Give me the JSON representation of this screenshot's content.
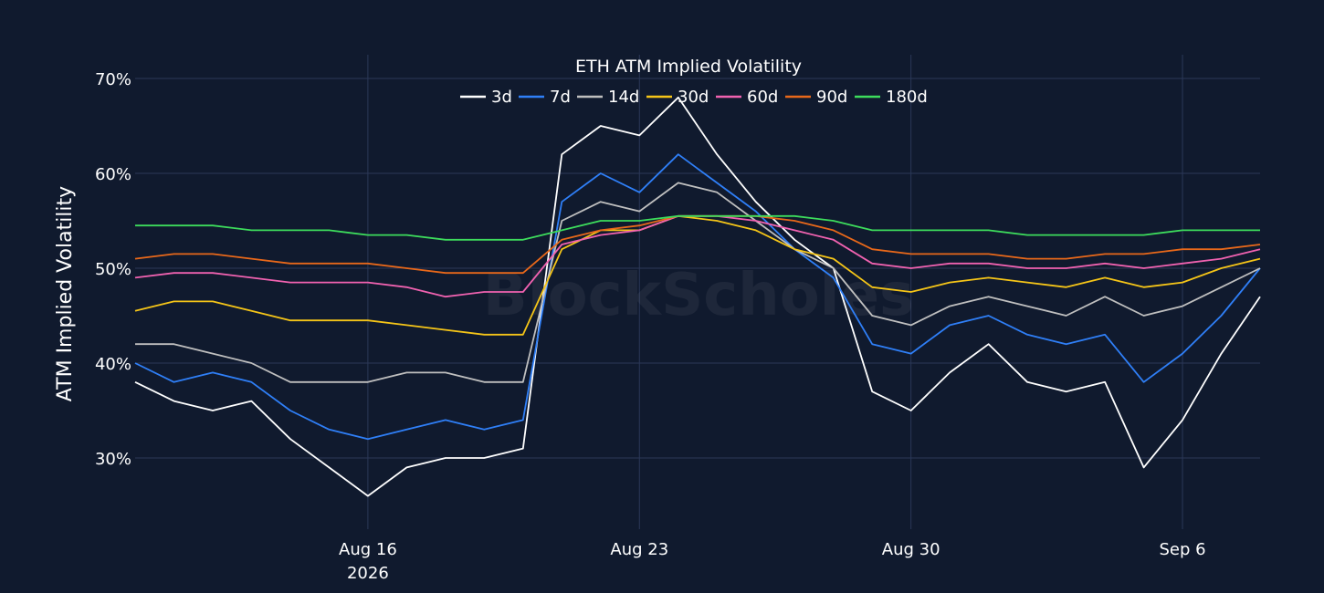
{
  "watermark": "BlockScholes",
  "chart_data": {
    "type": "line",
    "title": "ETH ATM Implied Volatility",
    "xlabel": "",
    "ylabel": "ATM Implied Volatility",
    "ylim": [
      22.5,
      72.5
    ],
    "y_ticks": [
      {
        "value": 30,
        "label": "30%"
      },
      {
        "value": 40,
        "label": "40%"
      },
      {
        "value": 50,
        "label": "50%"
      },
      {
        "value": 60,
        "label": "60%"
      },
      {
        "value": 70,
        "label": "70%"
      }
    ],
    "xlim": [
      "2026-08-10",
      "2026-09-08"
    ],
    "x_ticks": [
      {
        "date": "2026-08-16",
        "label": "Aug 16",
        "sublabel": "2026"
      },
      {
        "date": "2026-08-23",
        "label": "Aug 23",
        "sublabel": ""
      },
      {
        "date": "2026-08-30",
        "label": "Aug 30",
        "sublabel": ""
      },
      {
        "date": "2026-09-06",
        "label": "Sep 6",
        "sublabel": ""
      }
    ],
    "grid": true,
    "legend_position": "top-center",
    "x": [
      "2026-08-10",
      "2026-08-11",
      "2026-08-12",
      "2026-08-13",
      "2026-08-14",
      "2026-08-15",
      "2026-08-16",
      "2026-08-17",
      "2026-08-18",
      "2026-08-19",
      "2026-08-20",
      "2026-08-21",
      "2026-08-22",
      "2026-08-23",
      "2026-08-24",
      "2026-08-25",
      "2026-08-26",
      "2026-08-27",
      "2026-08-28",
      "2026-08-29",
      "2026-08-30",
      "2026-08-31",
      "2026-09-01",
      "2026-09-02",
      "2026-09-03",
      "2026-09-04",
      "2026-09-05",
      "2026-09-06",
      "2026-09-07",
      "2026-09-08"
    ],
    "series": [
      {
        "name": "3d",
        "color": "#ffffff",
        "values": [
          38,
          36,
          35,
          36,
          32,
          29,
          26,
          29,
          30,
          30,
          31,
          62,
          65,
          64,
          68,
          62,
          57,
          53,
          50,
          37,
          35,
          39,
          42,
          38,
          37,
          38,
          29,
          34,
          41,
          47
        ]
      },
      {
        "name": "7d",
        "color": "#2f7ff7",
        "values": [
          40,
          38,
          39,
          38,
          35,
          33,
          32,
          33,
          34,
          33,
          34,
          57,
          60,
          58,
          62,
          59,
          56,
          52,
          49,
          42,
          41,
          44,
          45,
          43,
          42,
          43,
          38,
          41,
          45,
          50
        ]
      },
      {
        "name": "14d",
        "color": "#bfbfbf",
        "values": [
          42,
          42,
          41,
          40,
          38,
          38,
          38,
          39,
          39,
          38,
          38,
          55,
          57,
          56,
          59,
          58,
          55,
          52,
          50,
          45,
          44,
          46,
          47,
          46,
          45,
          47,
          45,
          46,
          48,
          50
        ]
      },
      {
        "name": "30d",
        "color": "#f5c518",
        "values": [
          45.5,
          46.5,
          46.5,
          45.5,
          44.5,
          44.5,
          44.5,
          44,
          43.5,
          43,
          43,
          52,
          54,
          54,
          55.5,
          55,
          54,
          52,
          51,
          48,
          47.5,
          48.5,
          49,
          48.5,
          48,
          49,
          48,
          48.5,
          50,
          51
        ]
      },
      {
        "name": "60d",
        "color": "#f062b0",
        "values": [
          49,
          49.5,
          49.5,
          49,
          48.5,
          48.5,
          48.5,
          48,
          47,
          47.5,
          47.5,
          52.5,
          53.5,
          54,
          55.5,
          55.5,
          55,
          54,
          53,
          50.5,
          50,
          50.5,
          50.5,
          50,
          50,
          50.5,
          50,
          50.5,
          51,
          52
        ]
      },
      {
        "name": "90d",
        "color": "#e8681a",
        "values": [
          51,
          51.5,
          51.5,
          51,
          50.5,
          50.5,
          50.5,
          50,
          49.5,
          49.5,
          49.5,
          53,
          54,
          54.5,
          55.5,
          55.5,
          55.5,
          55,
          54,
          52,
          51.5,
          51.5,
          51.5,
          51,
          51,
          51.5,
          51.5,
          52,
          52,
          52.5
        ]
      },
      {
        "name": "180d",
        "color": "#3ddc5c",
        "values": [
          54.5,
          54.5,
          54.5,
          54,
          54,
          54,
          53.5,
          53.5,
          53,
          53,
          53,
          54,
          55,
          55,
          55.5,
          55.5,
          55.5,
          55.5,
          55,
          54,
          54,
          54,
          54,
          53.5,
          53.5,
          53.5,
          53.5,
          54,
          54,
          54
        ]
      }
    ]
  }
}
